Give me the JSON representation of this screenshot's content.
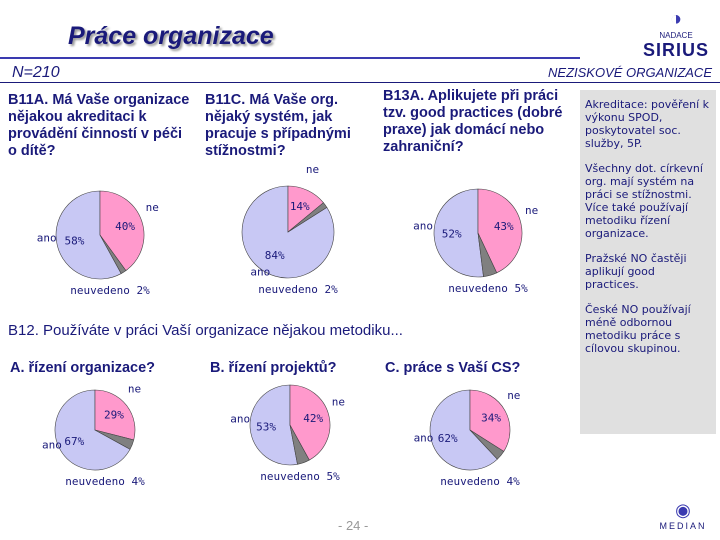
{
  "slide": {
    "title": "Práce organizace",
    "sample": "N=210",
    "segment": "NEZISKOVÉ ORGANIZACE",
    "section": "B12. Používáte v práci Vaší organizace nějakou metodiku...",
    "page": "- 24 -",
    "logo_top": [
      "NADACE",
      "SIRIUS"
    ],
    "logo_bottom": "MEDIAN",
    "notes": [
      "Akreditace: pověření k výkonu SPOD, poskytovatel soc. služby, 5P.",
      "Všechny dot. církevní org. mají systém na práci se stížnostmi. Více také používají metodiku řízení organizace.",
      "Pražské NO častěji aplikují good practices.",
      "České NO používají méně odbornou metodiku práce s cílovou skupinou."
    ]
  },
  "chart_data": [
    {
      "type": "pie",
      "title": "B11A. Má Vaše organizace nějakou akreditaci k provádění činností v péči o dítě?",
      "categories": [
        "ano",
        "ne",
        "neuvedeno"
      ],
      "values": [
        58,
        40,
        2
      ],
      "value_labels": [
        "58%",
        "40%",
        "2%"
      ],
      "colors": [
        "#c8c8f4",
        "#ff99cc",
        "#808080"
      ]
    },
    {
      "type": "pie",
      "title": "B11C. Má Vaše org. nějaký systém, jak pracuje s případnými stížnostmi?",
      "categories": [
        "ano",
        "ne",
        "neuvedeno"
      ],
      "values": [
        84,
        14,
        2
      ],
      "value_labels": [
        "84%",
        "14%",
        "2%"
      ],
      "colors": [
        "#c8c8f4",
        "#ff99cc",
        "#808080"
      ]
    },
    {
      "type": "pie",
      "title": "B13A. Aplikujete při práci tzv. good practices (dobré praxe) jak domácí nebo zahraniční?",
      "categories": [
        "ano",
        "ne",
        "neuvedeno"
      ],
      "values": [
        52,
        43,
        5
      ],
      "value_labels": [
        "52%",
        "43%",
        "5%"
      ],
      "colors": [
        "#c8c8f4",
        "#ff99cc",
        "#808080"
      ]
    },
    {
      "type": "pie",
      "title": "A. řízení organizace?",
      "categories": [
        "ano",
        "ne",
        "neuvedeno"
      ],
      "values": [
        67,
        29,
        4
      ],
      "value_labels": [
        "67%",
        "29%",
        "4%"
      ],
      "colors": [
        "#c8c8f4",
        "#ff99cc",
        "#808080"
      ]
    },
    {
      "type": "pie",
      "title": "B. řízení projektů?",
      "categories": [
        "ano",
        "ne",
        "neuvedeno"
      ],
      "values": [
        53,
        42,
        5
      ],
      "value_labels": [
        "53%",
        "42%",
        "5%"
      ],
      "colors": [
        "#c8c8f4",
        "#ff99cc",
        "#808080"
      ]
    },
    {
      "type": "pie",
      "title": "C. práce s Vaší CS?",
      "categories": [
        "ano",
        "ne",
        "neuvedeno"
      ],
      "values": [
        62,
        34,
        4
      ],
      "value_labels": [
        "62%",
        "34%",
        "4%"
      ],
      "colors": [
        "#c8c8f4",
        "#ff99cc",
        "#808080"
      ]
    }
  ]
}
